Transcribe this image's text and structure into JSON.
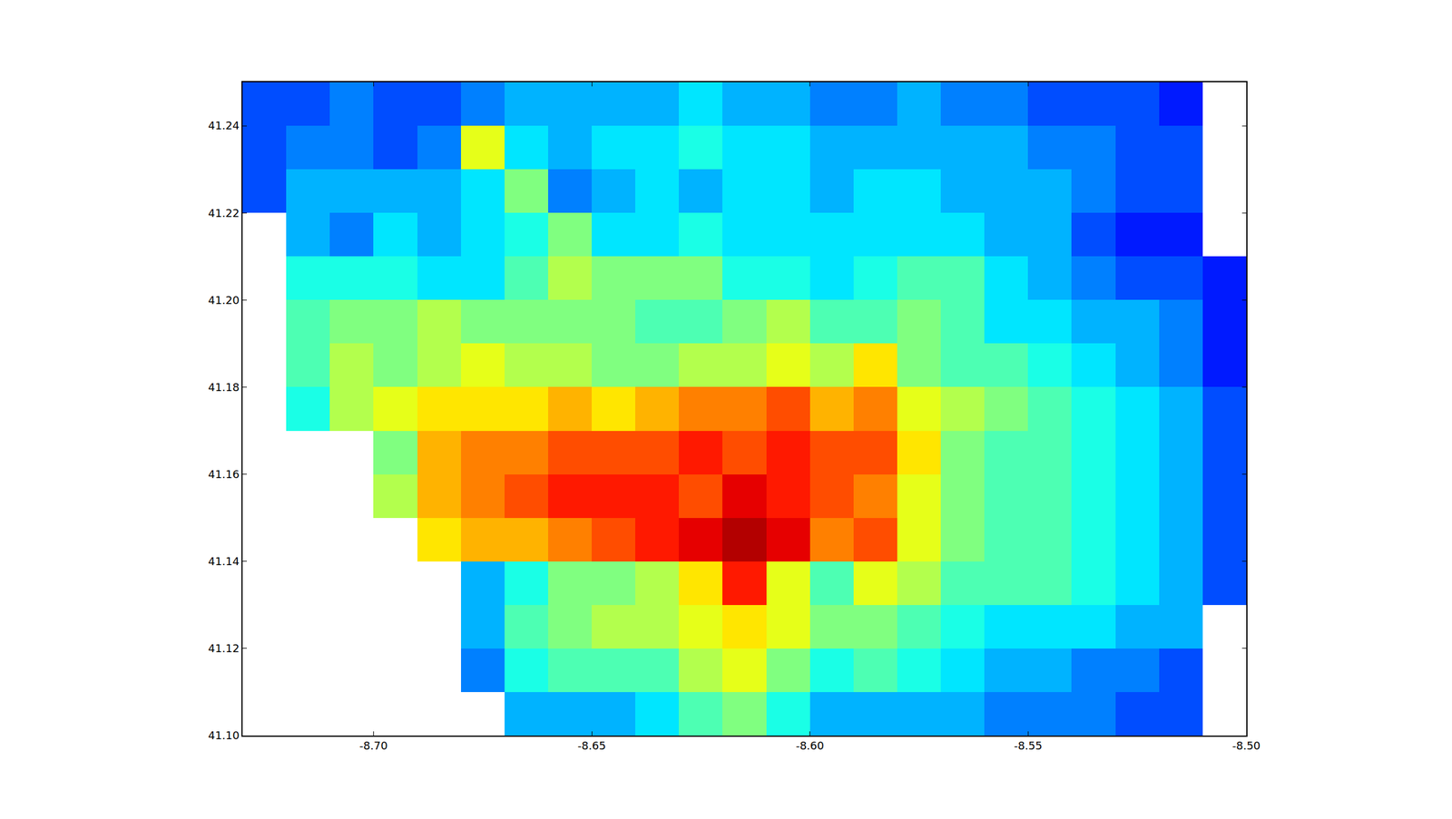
{
  "chart_data": {
    "type": "heatmap",
    "x": [
      -8.725,
      -8.715,
      -8.705,
      -8.695,
      -8.685,
      -8.675,
      -8.665,
      -8.655,
      -8.645,
      -8.635,
      -8.625,
      -8.615,
      -8.605,
      -8.595,
      -8.585,
      -8.575,
      -8.565,
      -8.555,
      -8.545,
      -8.535,
      -8.525,
      -8.515,
      -8.505
    ],
    "y": [
      41.105,
      41.115,
      41.125,
      41.135,
      41.145,
      41.155,
      41.165,
      41.175,
      41.185,
      41.195,
      41.205,
      41.215,
      41.225,
      41.235,
      41.245
    ],
    "z": [
      [
        null,
        null,
        null,
        null,
        null,
        null,
        3,
        3,
        3,
        3.5,
        4.5,
        5,
        4,
        3,
        3,
        3,
        3,
        2.5,
        2.5,
        2.5,
        2,
        2,
        null
      ],
      [
        null,
        null,
        null,
        null,
        null,
        2.5,
        4,
        4.5,
        4.5,
        4.5,
        5.5,
        6,
        5,
        4,
        4.5,
        4,
        3.5,
        3,
        3,
        2.5,
        2.5,
        2,
        null
      ],
      [
        null,
        null,
        null,
        null,
        null,
        3,
        4.5,
        5,
        5.5,
        5.5,
        6,
        6.5,
        6,
        5,
        5,
        4.5,
        4,
        3.5,
        3.5,
        3.5,
        3,
        3,
        null
      ],
      [
        null,
        null,
        null,
        null,
        null,
        3,
        4,
        5,
        5,
        5.5,
        6.5,
        8.5,
        6,
        4.5,
        6,
        5.5,
        4.5,
        4.5,
        4.5,
        4,
        3.5,
        3,
        2
      ],
      [
        null,
        null,
        null,
        null,
        6.5,
        7,
        7,
        7.5,
        8,
        8.5,
        9,
        9.5,
        9,
        7.5,
        8,
        6,
        5,
        4.5,
        4.5,
        4,
        3.5,
        3,
        2
      ],
      [
        null,
        null,
        null,
        5.5,
        7,
        7.5,
        8,
        8.5,
        8.5,
        8.5,
        8,
        9,
        8.5,
        8,
        7.5,
        6,
        5,
        4.5,
        4.5,
        4,
        3.5,
        3,
        2
      ],
      [
        null,
        null,
        null,
        5,
        7,
        7.5,
        7.5,
        8,
        8,
        8,
        8.5,
        8,
        8.5,
        8,
        8,
        6.5,
        5,
        4.5,
        4.5,
        4,
        3.5,
        3,
        2
      ],
      [
        null,
        4,
        5.5,
        6,
        6.5,
        6.5,
        6.5,
        7,
        6.5,
        7,
        7.5,
        7.5,
        8,
        7,
        7.5,
        6,
        5.5,
        5,
        4.5,
        4,
        3.5,
        3,
        2
      ],
      [
        null,
        4.5,
        5.5,
        5,
        5.5,
        6,
        5.5,
        5.5,
        5,
        5,
        5.5,
        5.5,
        6,
        5.5,
        6.5,
        5,
        4.5,
        4.5,
        4,
        3.5,
        3,
        2.5,
        1.5
      ],
      [
        null,
        4.5,
        5,
        5,
        5.5,
        5,
        5,
        5,
        5,
        4.5,
        4.5,
        5,
        5.5,
        4.5,
        4.5,
        5,
        4.5,
        3.5,
        3.5,
        3,
        3,
        2.5,
        1.5
      ],
      [
        null,
        4,
        4,
        4,
        3.5,
        3.5,
        4.5,
        5.5,
        5,
        5,
        5,
        4,
        4,
        3.5,
        4,
        4.5,
        4.5,
        3.5,
        3,
        2.5,
        2,
        2,
        1.5
      ],
      [
        null,
        3,
        2.5,
        3.5,
        3,
        3.5,
        4,
        5,
        3.5,
        3.5,
        4,
        3.5,
        3.5,
        3.5,
        3.5,
        3.5,
        3.5,
        3,
        3,
        2,
        1.5,
        1.5,
        null
      ],
      [
        2,
        3,
        3,
        3,
        3,
        3.5,
        5,
        2.5,
        3,
        3.5,
        3,
        3.5,
        3.5,
        3,
        3.5,
        3.5,
        3,
        3,
        3,
        2.5,
        2,
        2,
        null
      ],
      [
        2,
        2.5,
        2.5,
        2,
        2.5,
        6,
        3.5,
        3,
        3.5,
        3.5,
        4,
        3.5,
        3.5,
        3,
        3,
        3,
        3,
        3,
        2.5,
        2.5,
        2,
        2,
        null
      ],
      [
        2,
        2,
        2.5,
        2,
        2,
        2.5,
        3,
        3,
        3,
        3,
        3.5,
        3,
        3,
        2.5,
        2.5,
        3,
        2.5,
        2.5,
        2,
        2,
        2,
        1.5,
        null
      ]
    ],
    "zlim": [
      0,
      10
    ],
    "xlim": [
      -8.73,
      -8.5
    ],
    "ylim": [
      41.1,
      41.25
    ],
    "xticks": [
      {
        "value": -8.7,
        "label": "-8.70"
      },
      -8.65,
      {
        "value": -8.6,
        "label": "-8.60"
      },
      -8.55,
      {
        "value": -8.5,
        "label": "-8.50"
      }
    ],
    "yticks": [
      {
        "value": 41.1,
        "label": "41.10"
      },
      41.12,
      41.14,
      41.16,
      41.18,
      {
        "value": 41.2,
        "label": "41.20"
      },
      41.22,
      41.24
    ],
    "grid": false
  }
}
